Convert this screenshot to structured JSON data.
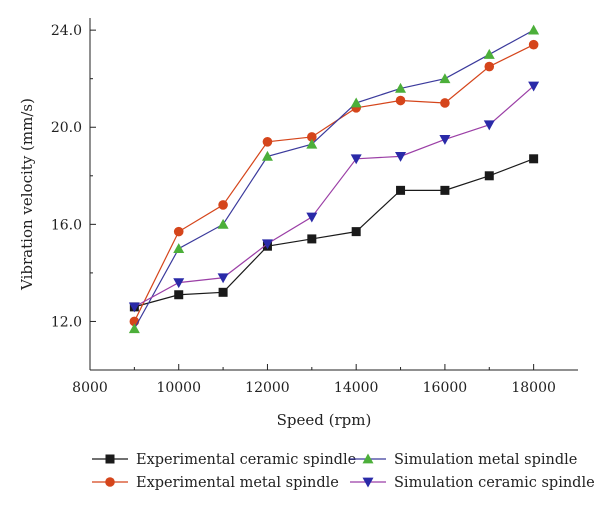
{
  "chart_data": {
    "type": "line",
    "title": "",
    "xlabel": "Speed (rpm)",
    "ylabel": "Vibration velocity (mm/s)",
    "xlim": [
      8000,
      19000
    ],
    "ylim": [
      10.0,
      24.5
    ],
    "x_ticks": [
      8000,
      10000,
      12000,
      14000,
      16000,
      18000
    ],
    "x_tick_labels": [
      "8000",
      "10000",
      "12000",
      "14000",
      "16000",
      "18000"
    ],
    "y_ticks": [
      12.0,
      16.0,
      20.0,
      24.0
    ],
    "y_tick_labels": [
      "12.0",
      "16.0",
      "20.0",
      "24.0"
    ],
    "grid": false,
    "legend_position": "bottom",
    "x": [
      9000,
      10000,
      11000,
      12000,
      13000,
      14000,
      15000,
      16000,
      17000,
      18000
    ],
    "series": [
      {
        "name": "Experimental ceramic spindle",
        "marker": "square",
        "color": "#1a1a1a",
        "values": [
          12.6,
          13.1,
          13.2,
          15.1,
          15.4,
          15.7,
          17.4,
          17.4,
          18.0,
          18.7
        ]
      },
      {
        "name": "Experimental metal spindle",
        "marker": "circle",
        "color": "#d5451b",
        "values": [
          12.0,
          15.7,
          16.8,
          19.4,
          19.6,
          20.8,
          21.1,
          21.0,
          22.5,
          23.4
        ]
      },
      {
        "name": "Simulation metal spindle",
        "marker": "triangle-up",
        "color": "#3b3a9c",
        "marker_color": "#4caf3a",
        "values": [
          11.7,
          15.0,
          16.0,
          18.8,
          19.3,
          21.0,
          21.6,
          22.0,
          23.0,
          24.0
        ]
      },
      {
        "name": "Simulation ceramic spindle",
        "marker": "triangle-down",
        "color": "#9b3fa6",
        "marker_color": "#2a2aa8",
        "values": [
          12.6,
          13.6,
          13.8,
          15.2,
          16.3,
          18.7,
          18.8,
          19.5,
          20.1,
          21.7
        ]
      }
    ]
  }
}
